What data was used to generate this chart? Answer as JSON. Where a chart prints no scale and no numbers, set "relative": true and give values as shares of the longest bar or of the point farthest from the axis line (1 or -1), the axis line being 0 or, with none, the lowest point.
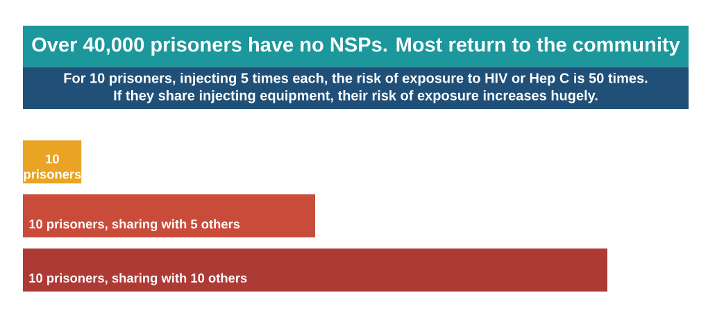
{
  "chart_data": {
    "type": "bar",
    "orientation": "horizontal",
    "relative": true,
    "title": "Over 40,000 prisoners have no NSPs. Most return to the community",
    "subtitle": "For 10 prisoners, injecting 5 times each, the risk of exposure to HIV or Hep C is 50 times. If they share injecting equipment, their risk of exposure increases hugely.",
    "categories": [
      "10 prisoners",
      "10 prisoners, sharing with 5 others",
      "10 prisoners, sharing with 10 others"
    ],
    "values": [
      0.1,
      0.5,
      1
    ],
    "colors": [
      "#e9a423",
      "#c94c3a",
      "#ae3a36"
    ]
  }
}
